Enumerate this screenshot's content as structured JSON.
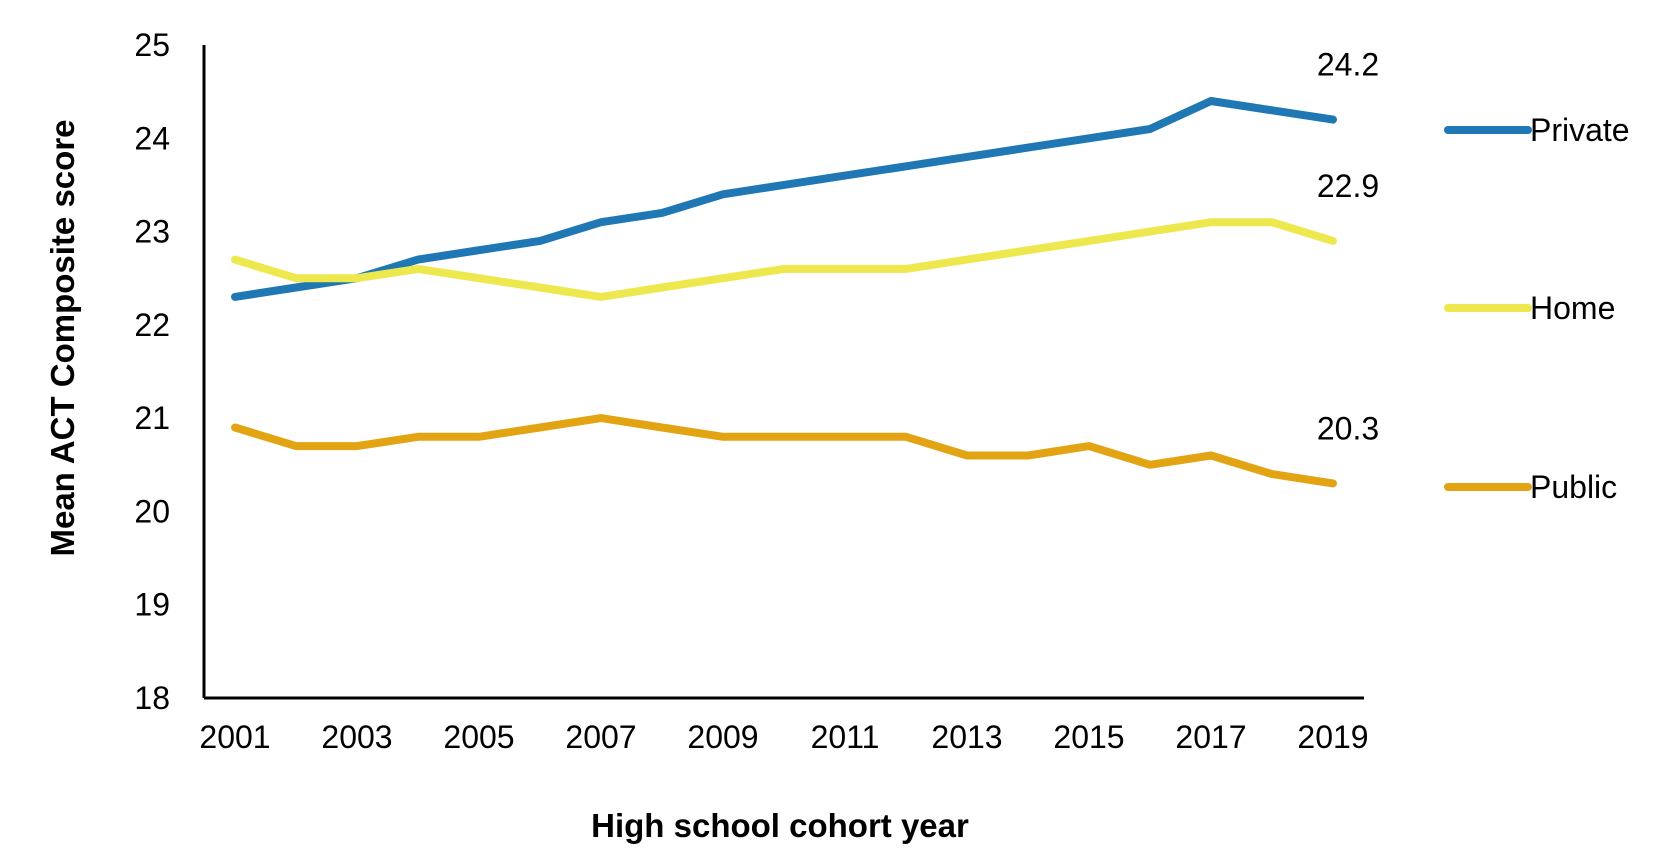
{
  "chart_data": {
    "type": "line",
    "xlabel": "High school cohort year",
    "ylabel": "Mean ACT Composite score",
    "x": [
      2001,
      2002,
      2003,
      2004,
      2005,
      2006,
      2007,
      2008,
      2009,
      2010,
      2011,
      2012,
      2013,
      2014,
      2015,
      2016,
      2017,
      2018,
      2019
    ],
    "x_ticks": [
      "2001",
      "2003",
      "2005",
      "2007",
      "2009",
      "2011",
      "2013",
      "2015",
      "2017",
      "2019"
    ],
    "y_ticks": [
      "18",
      "19",
      "20",
      "21",
      "22",
      "23",
      "24",
      "25"
    ],
    "ylim": [
      18,
      25
    ],
    "xlim": [
      2001,
      2019
    ],
    "grid": false,
    "legend_placement": "right",
    "series": [
      {
        "name": "Private",
        "color": "#1f77b4",
        "values": [
          22.3,
          22.4,
          22.5,
          22.7,
          22.8,
          22.9,
          23.1,
          23.2,
          23.4,
          23.5,
          23.6,
          23.7,
          23.8,
          23.9,
          24.0,
          24.1,
          24.4,
          24.3,
          24.2
        ],
        "end_label": "24.2"
      },
      {
        "name": "Home",
        "color": "#ede84e",
        "values": [
          22.7,
          22.5,
          22.5,
          22.6,
          22.5,
          22.4,
          22.3,
          22.4,
          22.5,
          22.6,
          22.6,
          22.6,
          22.7,
          22.8,
          22.9,
          23.0,
          23.1,
          23.1,
          22.9
        ],
        "end_label": "22.9"
      },
      {
        "name": "Public",
        "color": "#e3a413",
        "values": [
          20.9,
          20.7,
          20.7,
          20.8,
          20.8,
          20.9,
          21.0,
          20.9,
          20.8,
          20.8,
          20.8,
          20.8,
          20.6,
          20.6,
          20.7,
          20.5,
          20.6,
          20.4,
          20.3
        ],
        "end_label": "20.3"
      }
    ]
  }
}
